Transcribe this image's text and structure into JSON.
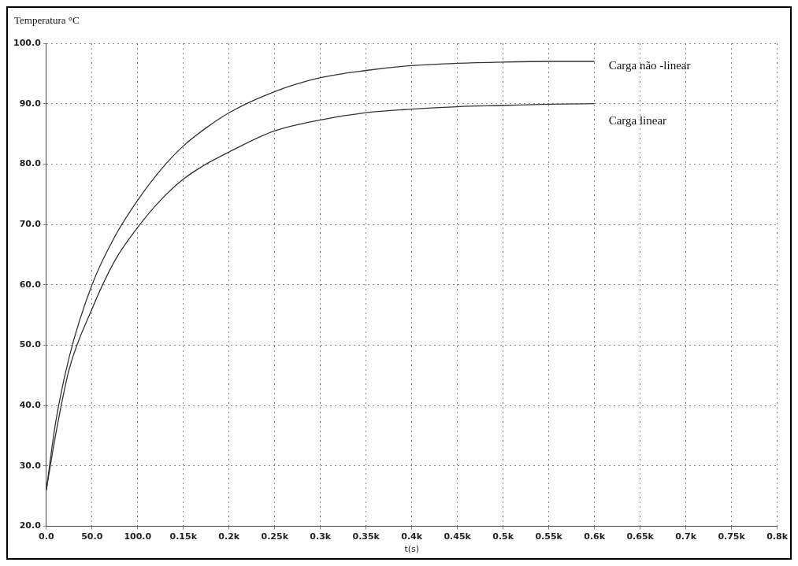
{
  "chart_data": {
    "type": "line",
    "ylabel": "Temperatura °C",
    "xlabel": "t(s)",
    "x": [
      0,
      10,
      25,
      50,
      75,
      100,
      125,
      150,
      175,
      200,
      250,
      300,
      350,
      400,
      450,
      500,
      550,
      600
    ],
    "series": [
      {
        "name": "Carga não -linear",
        "color": "#333333",
        "values": [
          26,
          37,
          48,
          60,
          68,
          74,
          79,
          83,
          86,
          88.5,
          92,
          94.3,
          95.5,
          96.3,
          96.7,
          96.9,
          97,
          97
        ]
      },
      {
        "name": "Carga linear",
        "color": "#333333",
        "values": [
          26,
          35,
          46,
          56,
          64,
          69.5,
          74,
          77.5,
          80,
          82,
          85.5,
          87.3,
          88.5,
          89.1,
          89.5,
          89.7,
          89.9,
          90
        ]
      }
    ],
    "xlim": [
      0,
      800
    ],
    "xticks": [
      {
        "value": 0,
        "label": "0.0"
      },
      {
        "value": 50,
        "label": "50.0"
      },
      {
        "value": 100,
        "label": "100.0"
      },
      {
        "value": 150,
        "label": "0.15k"
      },
      {
        "value": 200,
        "label": "0.2k"
      },
      {
        "value": 250,
        "label": "0.25k"
      },
      {
        "value": 300,
        "label": "0.3k"
      },
      {
        "value": 350,
        "label": "0.35k"
      },
      {
        "value": 400,
        "label": "0.4k"
      },
      {
        "value": 450,
        "label": "0.45k"
      },
      {
        "value": 500,
        "label": "0.5k"
      },
      {
        "value": 550,
        "label": "0.55k"
      },
      {
        "value": 600,
        "label": "0.6k"
      },
      {
        "value": 650,
        "label": "0.65k"
      },
      {
        "value": 700,
        "label": "0.7k"
      },
      {
        "value": 750,
        "label": "0.75k"
      },
      {
        "value": 800,
        "label": "0.8k"
      }
    ],
    "ylim": [
      20,
      100
    ],
    "yticks": [
      {
        "value": 20,
        "label": "20.0"
      },
      {
        "value": 30,
        "label": "30.0"
      },
      {
        "value": 40,
        "label": "40.0"
      },
      {
        "value": 50,
        "label": "50.0"
      },
      {
        "value": 60,
        "label": "60.0"
      },
      {
        "value": 70,
        "label": "70.0"
      },
      {
        "value": 80,
        "label": "80.0"
      },
      {
        "value": 90,
        "label": "90.0"
      },
      {
        "value": 100,
        "label": "100.0"
      }
    ],
    "grid": true,
    "legend": false
  }
}
